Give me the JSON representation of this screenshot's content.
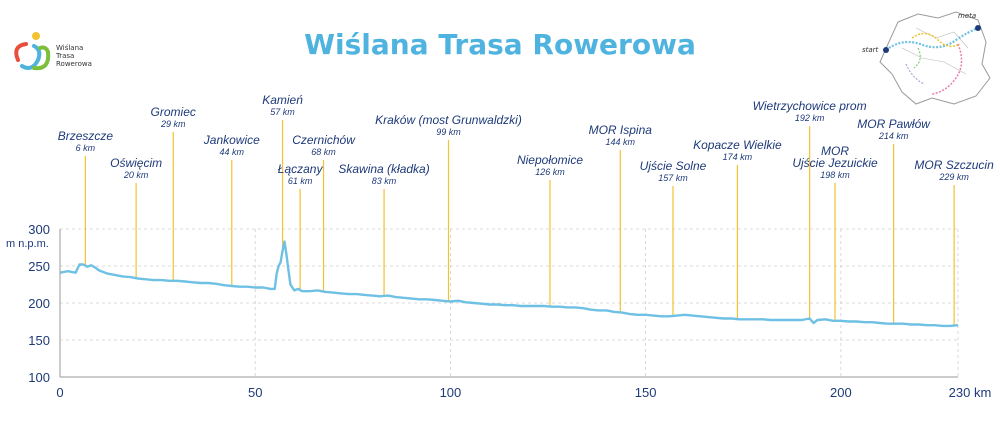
{
  "title": "Wiślana Trasa Rowerowa",
  "logo": {
    "lines": [
      "Wiślana",
      "Trasa",
      "Rowerowa"
    ]
  },
  "minimap": {
    "start_label": "start",
    "end_label": "meta"
  },
  "colors": {
    "profile": "#6ec1e4",
    "marker": "#f2c230",
    "title": "#4fb3e0",
    "text": "#1e3a7a"
  },
  "chart_data": {
    "type": "area",
    "title": "Wiślana Trasa Rowerowa",
    "xlabel": "km",
    "ylabel": "m n.p.m.",
    "xlim": [
      0,
      230
    ],
    "ylim": [
      100,
      300
    ],
    "xticks": [
      0,
      50,
      100,
      150,
      200,
      230
    ],
    "xtick_labels": [
      "0",
      "50",
      "100",
      "150",
      "200",
      "230 km"
    ],
    "yticks": [
      100,
      150,
      200,
      250,
      300
    ],
    "profile": {
      "x": [
        0,
        2,
        4,
        5,
        6,
        7,
        8,
        9,
        10,
        12,
        14,
        16,
        18,
        20,
        22,
        24,
        26,
        28,
        30,
        32,
        34,
        36,
        38,
        40,
        42,
        44,
        46,
        48,
        50,
        52,
        54,
        55,
        55.5,
        56,
        56.5,
        57,
        57.5,
        58,
        58.5,
        59,
        60,
        61,
        62,
        64,
        66,
        68,
        70,
        72,
        74,
        76,
        78,
        80,
        82,
        84,
        86,
        88,
        90,
        92,
        94,
        96,
        98,
        100,
        102,
        104,
        106,
        108,
        110,
        112,
        114,
        116,
        118,
        120,
        122,
        124,
        126,
        128,
        130,
        132,
        134,
        136,
        138,
        140,
        142,
        144,
        146,
        148,
        150,
        152,
        154,
        156,
        158,
        160,
        162,
        164,
        166,
        168,
        170,
        172,
        174,
        176,
        178,
        180,
        182,
        184,
        186,
        188,
        190,
        192,
        193,
        194,
        196,
        198,
        200,
        202,
        204,
        206,
        208,
        210,
        212,
        214,
        216,
        218,
        220,
        222,
        224,
        226,
        228,
        230
      ],
      "y": [
        241,
        243,
        241,
        252,
        252,
        249,
        251,
        248,
        244,
        240,
        238,
        236,
        235,
        233,
        232,
        231,
        231,
        230,
        230,
        229,
        228,
        227,
        227,
        226,
        224,
        223,
        222,
        222,
        221,
        221,
        219,
        219,
        240,
        250,
        255,
        270,
        283,
        265,
        245,
        225,
        217,
        219,
        216,
        216,
        217,
        215,
        214,
        213,
        212,
        212,
        211,
        210,
        209,
        210,
        208,
        207,
        206,
        205,
        205,
        204,
        203,
        202,
        203,
        201,
        200,
        199,
        198,
        198,
        197,
        197,
        196,
        196,
        196,
        196,
        195,
        195,
        194,
        194,
        193,
        191,
        190,
        190,
        188,
        187,
        185,
        184,
        184,
        183,
        182,
        182,
        183,
        184,
        183,
        182,
        181,
        180,
        179,
        179,
        178,
        178,
        178,
        178,
        177,
        177,
        177,
        177,
        177,
        179,
        173,
        177,
        178,
        176,
        176,
        175,
        175,
        174,
        174,
        173,
        172,
        172,
        172,
        171,
        171,
        170,
        170,
        169,
        169,
        170
      ]
    },
    "markers": [
      {
        "name": "Brzeszcze",
        "km_label": "6 km",
        "x": 6.5,
        "label_lines": 1
      },
      {
        "name": "Oświęcim",
        "km_label": "20 km",
        "x": 19.5,
        "label_lines": 1
      },
      {
        "name": "Gromiec",
        "km_label": "29 km",
        "x": 29,
        "label_lines": 1
      },
      {
        "name": "Jankowice",
        "km_label": "44 km",
        "x": 44,
        "label_lines": 1
      },
      {
        "name": "Kamień",
        "km_label": "57 km",
        "x": 57,
        "label_lines": 1
      },
      {
        "name": "Łączany",
        "km_label": "61 km",
        "x": 61.5,
        "label_lines": 1
      },
      {
        "name": "Czernichów",
        "km_label": "68 km",
        "x": 67.5,
        "label_lines": 1
      },
      {
        "name": "Skawina (kładka)",
        "km_label": "83 km",
        "x": 83,
        "label_lines": 1
      },
      {
        "name": "Kraków (most Grunwaldzki)",
        "km_label": "99 km",
        "x": 99.5,
        "label_lines": 1
      },
      {
        "name": "Niepołomice",
        "km_label": "126 km",
        "x": 125.5,
        "label_lines": 1
      },
      {
        "name": "MOR Ispina",
        "km_label": "144 km",
        "x": 143.5,
        "label_lines": 1
      },
      {
        "name": "Ujście Solne",
        "km_label": "157 km",
        "x": 157,
        "label_lines": 1
      },
      {
        "name": "Kopacze Wielkie",
        "km_label": "174 km",
        "x": 173.5,
        "label_lines": 1
      },
      {
        "name": "Wietrzychowice prom",
        "km_label": "192 km",
        "x": 192,
        "label_lines": 1
      },
      {
        "name": "MOR Ujście Jezuickie",
        "name_lines": [
          "MOR",
          "Ujście Jezuickie"
        ],
        "km_label": "198 km",
        "x": 198.5
      },
      {
        "name": "MOR Pawłów",
        "km_label": "214 km",
        "x": 213.5,
        "label_lines": 1
      },
      {
        "name": "MOR Szczucin",
        "km_label": "229 km",
        "x": 229,
        "label_lines": 1
      }
    ]
  }
}
